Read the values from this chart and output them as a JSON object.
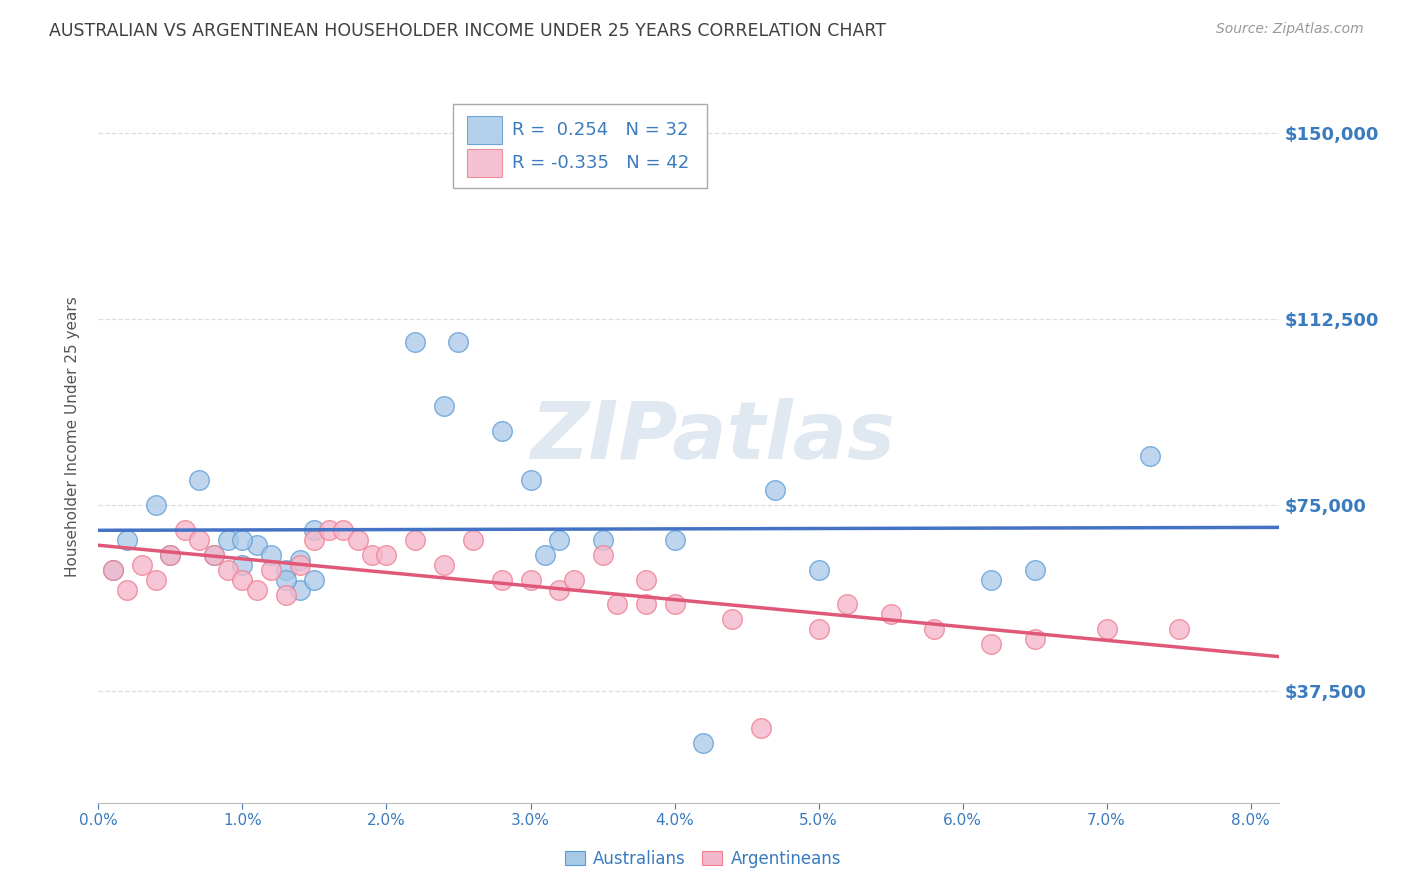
{
  "title": "AUSTRALIAN VS ARGENTINEAN HOUSEHOLDER INCOME UNDER 25 YEARS CORRELATION CHART",
  "source": "Source: ZipAtlas.com",
  "ylabel": "Householder Income Under 25 years",
  "xlim": [
    0.0,
    0.082
  ],
  "ylim": [
    15000,
    162500
  ],
  "yticks": [
    37500,
    75000,
    112500,
    150000
  ],
  "ytick_labels": [
    "$37,500",
    "$75,000",
    "$112,500",
    "$150,000"
  ],
  "xticks": [
    0.0,
    0.01,
    0.02,
    0.03,
    0.04,
    0.05,
    0.06,
    0.07,
    0.08
  ],
  "xtick_labels": [
    "0.0%",
    "1.0%",
    "2.0%",
    "3.0%",
    "4.0%",
    "5.0%",
    "6.0%",
    "7.0%",
    "8.0%"
  ],
  "watermark": "ZIPatlas",
  "R_aus": 0.254,
  "N_aus": 32,
  "R_arg": -0.335,
  "N_arg": 42,
  "blue_color": "#a8c8e8",
  "pink_color": "#f4b8cc",
  "blue_edge_color": "#5b9bd5",
  "pink_edge_color": "#f08090",
  "blue_line_color": "#4472c4",
  "pink_line_color": "#e05878",
  "title_color": "#404040",
  "tick_color": "#3a7bbf",
  "grid_color": "#dddddd",
  "background_color": "#ffffff",
  "aus_x": [
    0.001,
    0.002,
    0.004,
    0.005,
    0.007,
    0.008,
    0.009,
    0.01,
    0.011,
    0.012,
    0.013,
    0.014,
    0.014,
    0.015,
    0.022,
    0.024,
    0.025,
    0.028,
    0.03,
    0.031,
    0.032,
    0.035,
    0.04,
    0.042,
    0.05,
    0.062,
    0.065,
    0.073,
    0.015,
    0.013,
    0.01,
    0.047
  ],
  "aus_y": [
    62000,
    68000,
    75000,
    65000,
    80000,
    65000,
    68000,
    63000,
    67000,
    65000,
    62000,
    64000,
    58000,
    60000,
    108000,
    95000,
    108000,
    90000,
    80000,
    65000,
    68000,
    68000,
    68000,
    27000,
    62000,
    60000,
    62000,
    85000,
    70000,
    60000,
    68000,
    78000
  ],
  "arg_x": [
    0.001,
    0.002,
    0.003,
    0.004,
    0.005,
    0.006,
    0.007,
    0.008,
    0.009,
    0.01,
    0.011,
    0.012,
    0.013,
    0.014,
    0.015,
    0.016,
    0.017,
    0.018,
    0.019,
    0.02,
    0.022,
    0.024,
    0.026,
    0.028,
    0.03,
    0.032,
    0.033,
    0.035,
    0.036,
    0.038,
    0.04,
    0.044,
    0.046,
    0.05,
    0.052,
    0.055,
    0.058,
    0.062,
    0.065,
    0.07,
    0.075,
    0.038
  ],
  "arg_y": [
    62000,
    58000,
    63000,
    60000,
    65000,
    70000,
    68000,
    65000,
    62000,
    60000,
    58000,
    62000,
    57000,
    63000,
    68000,
    70000,
    70000,
    68000,
    65000,
    65000,
    68000,
    63000,
    68000,
    60000,
    60000,
    58000,
    60000,
    65000,
    55000,
    55000,
    55000,
    52000,
    30000,
    50000,
    55000,
    53000,
    50000,
    47000,
    48000,
    50000,
    50000,
    60000
  ]
}
